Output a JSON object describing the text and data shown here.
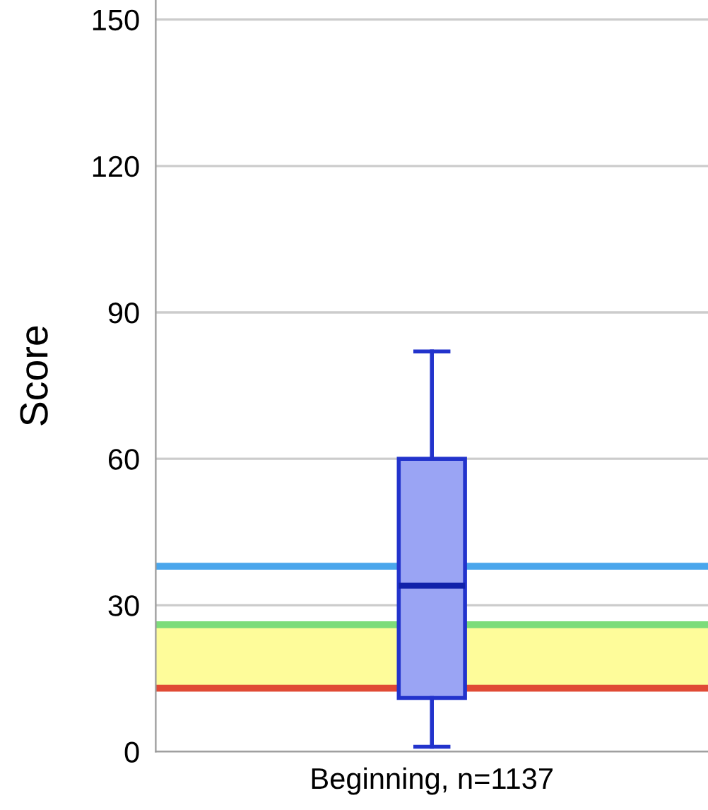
{
  "chart_data": {
    "type": "box",
    "ylabel": "Score",
    "categories": [
      "Beginning, n=1137"
    ],
    "boxes": [
      {
        "low": 1,
        "q1": 11,
        "median": 34,
        "q3": 60,
        "high": 82
      }
    ],
    "color": "#9aa4f4",
    "ylim": [
      0,
      154
    ],
    "yticks": [
      0,
      30,
      60,
      90,
      120,
      150
    ],
    "grid": "y",
    "ref_lines": [
      {
        "axis": "y",
        "value": 38,
        "color": "#4aa6ec"
      },
      {
        "axis": "y",
        "value": 26,
        "color": "#7ddc7a"
      },
      {
        "axis": "y",
        "value": 13,
        "color": "#e04a35"
      }
    ],
    "bands": [
      {
        "axis": "y",
        "from": 13,
        "to": 26,
        "color": "#fefc9a"
      }
    ]
  }
}
